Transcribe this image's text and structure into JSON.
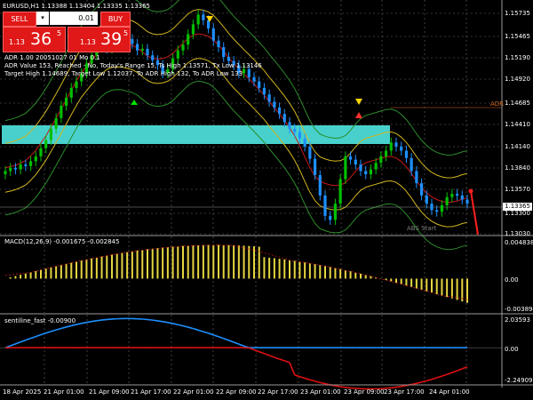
{
  "symbol_line": {
    "symbol": "EURUSD,H1",
    "ohlc": "1.13388 1.13404 1.13335 1.13365"
  },
  "trade_panel": {
    "sell_label": "SELL",
    "buy_label": "BUY",
    "lot_value": "0.01",
    "sell_price_prefix": "1.13",
    "sell_price_big": "36",
    "sell_price_sup": "5",
    "buy_price_prefix": "1.13",
    "buy_price_big": "39",
    "buy_price_sup": "5"
  },
  "indicator_text": {
    "line1": "ADR 1.00 20051027 01 Mo  0.1",
    "line2": "ADR Value 153, Reached - No, Today's Range 15, Ts High 1.13571, Tx Low 1.13146",
    "line3": "Target High 1.14689, Target Low 1.12037, To ADR High 132, To ADR Low 133"
  },
  "price_axis": {
    "labels": [
      "1.15735",
      "1.15465",
      "1.15190",
      "1.14920",
      "1.14685",
      "1.14410",
      "1.14140",
      "1.13840",
      "1.13570",
      "1.13300",
      "1.13030"
    ],
    "current": "1.13365"
  },
  "time_axis": {
    "labels": [
      "18 Apr 2025",
      "21 Apr 01:00",
      "21 Apr 09:00",
      "21 Apr 17:00",
      "22 Apr 01:00",
      "22 Apr 09:00",
      "22 Apr 17:00",
      "23 Apr 01:00",
      "23 Apr 09:00",
      "23 Apr 17:00",
      "24 Apr 01:00"
    ]
  },
  "chart_labels": {
    "adr": "ADR",
    "abs_start": "ABS Start"
  },
  "macd": {
    "label": "MACD(12,26,9) -0.001675 -0.002845",
    "axis": [
      "0.004838",
      "0.00",
      "-0.003894"
    ]
  },
  "oscillator": {
    "label": "sentiline_fast -0.00900",
    "axis": [
      "2.03593",
      "0.00",
      "-2.24909"
    ]
  },
  "colors": {
    "bull_candle": "#00c000",
    "bear_candle": "#1e90ff",
    "zone": "#48d1cc",
    "grid": "#6a6a6a",
    "macd_bar": "#e6d640",
    "osc_up": "#1e90ff",
    "osc_down": "#e01010",
    "sell_button": "#e01818",
    "band_inner": "#d2b41e",
    "band_outer": "#2c8c2c",
    "ma": "#c81818"
  }
}
